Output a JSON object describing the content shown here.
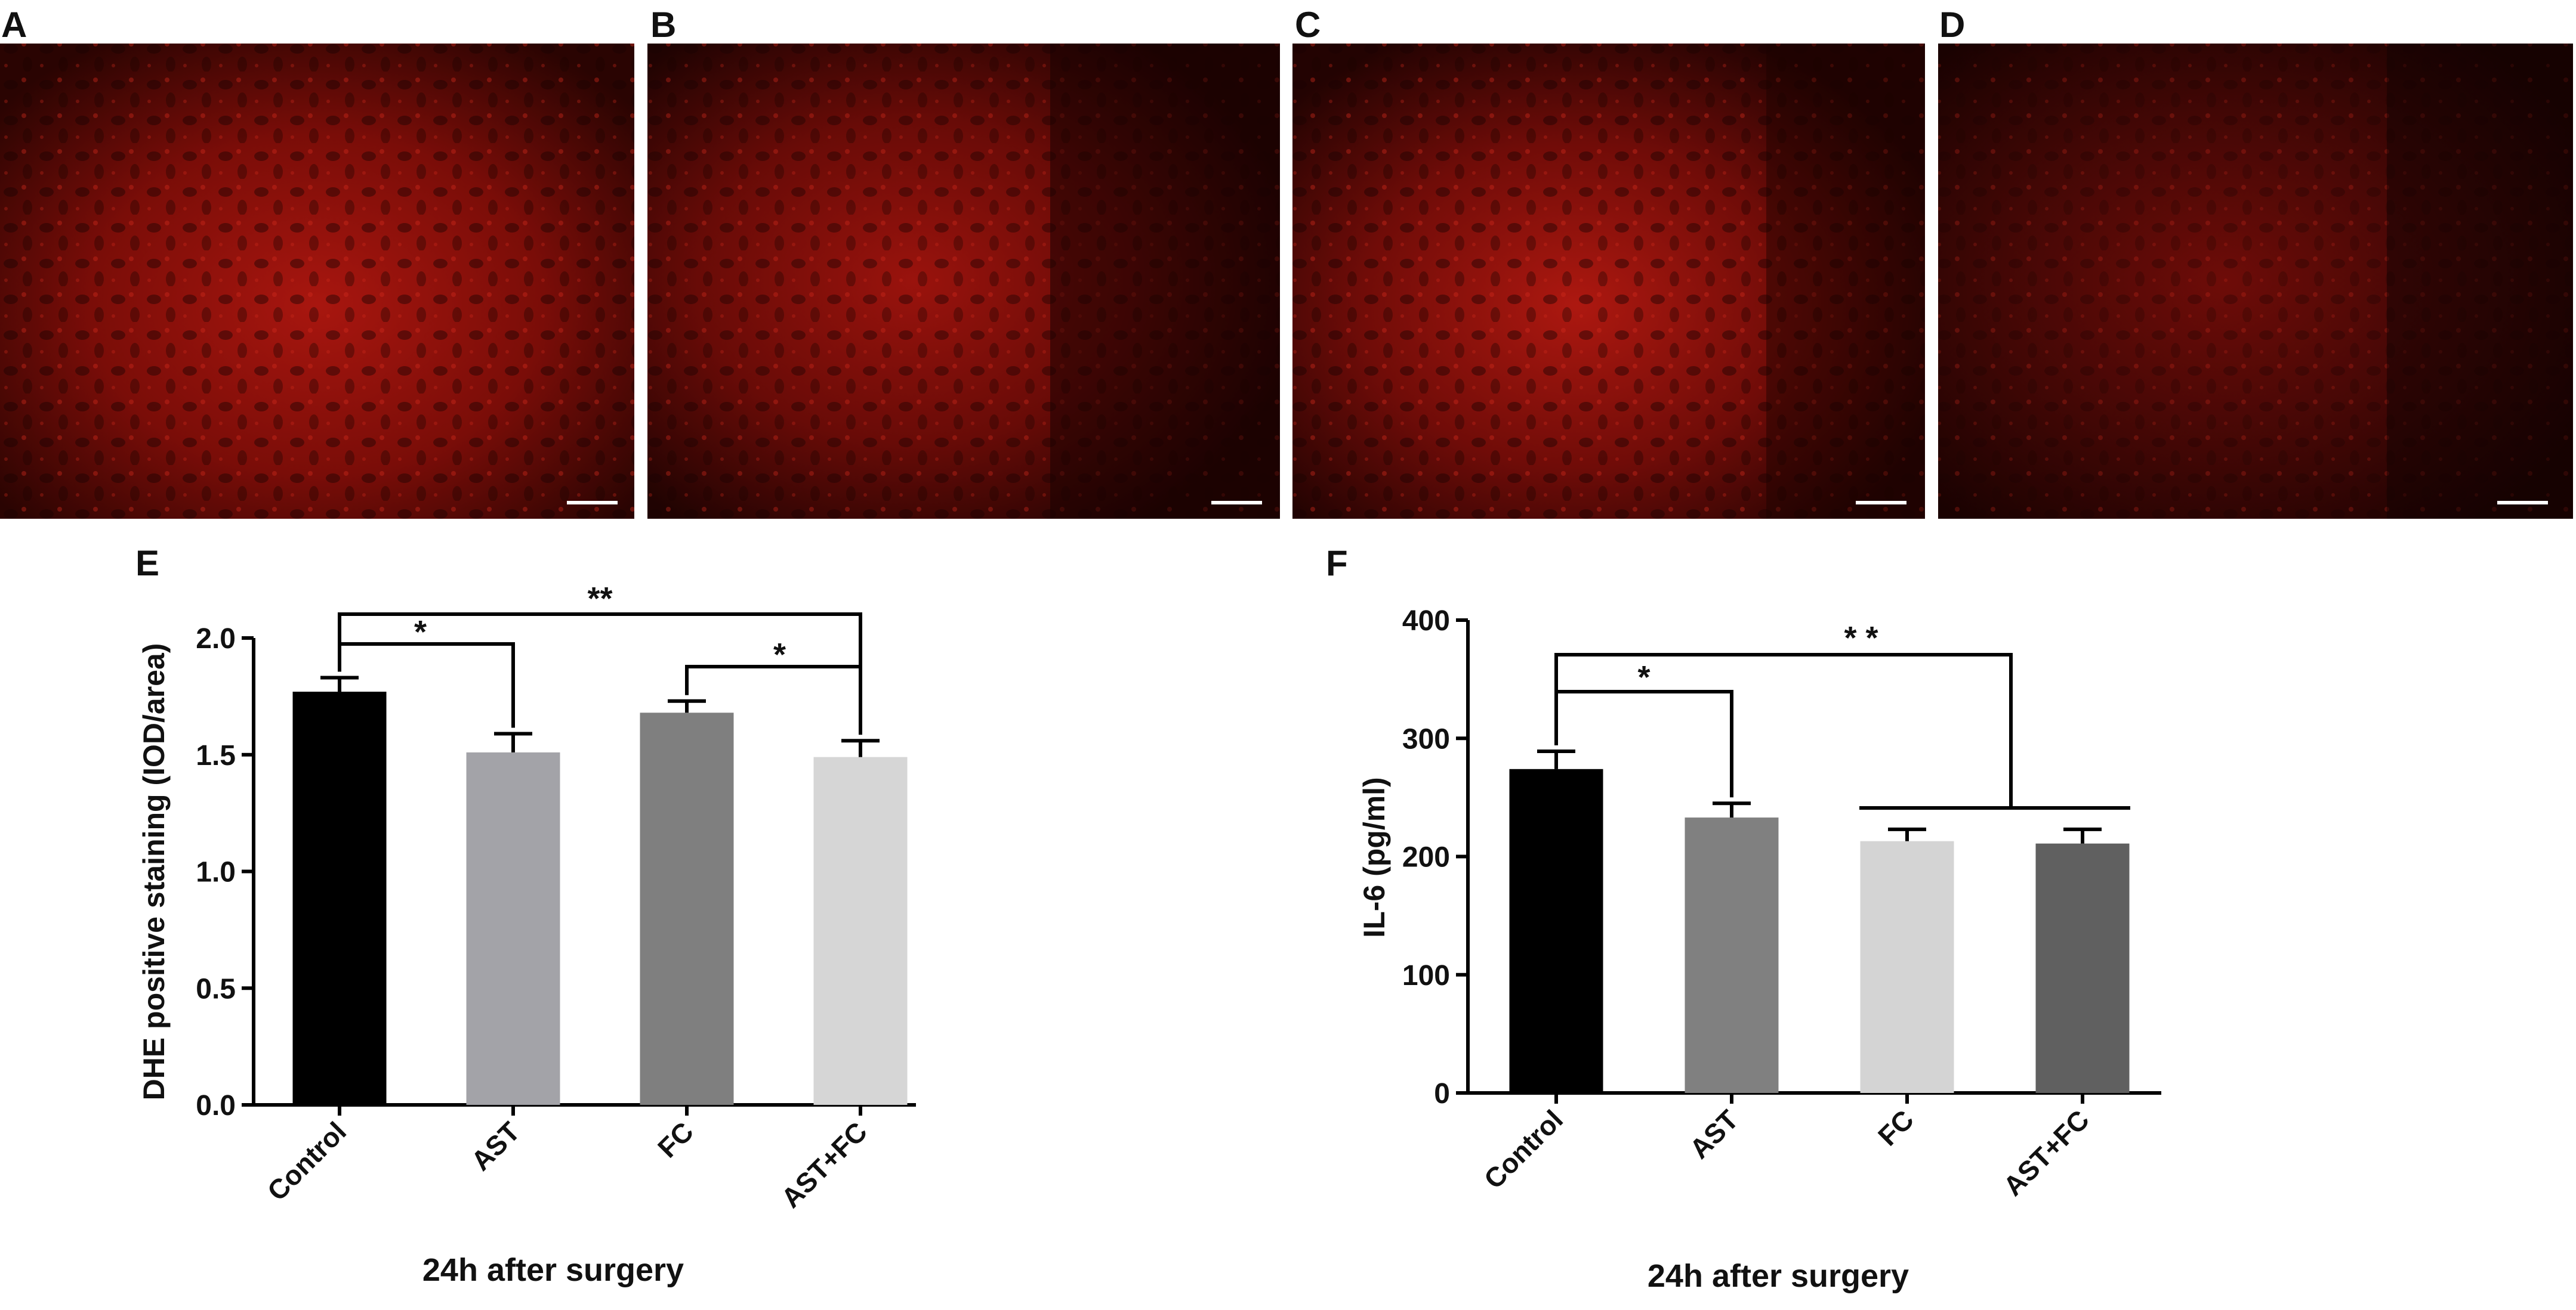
{
  "panels": [
    {
      "letter": "A",
      "color": "#8a0f0a"
    },
    {
      "letter": "B",
      "color": "#7d0d09"
    },
    {
      "letter": "C",
      "color": "#8e120c"
    },
    {
      "letter": "D",
      "color": "#6a0b08"
    }
  ],
  "chart_data": [
    {
      "letter": "E",
      "type": "bar",
      "categories": [
        "Control",
        "AST",
        "FC",
        "AST+FC"
      ],
      "values": [
        1.77,
        1.51,
        1.68,
        1.49
      ],
      "errors": [
        0.06,
        0.08,
        0.05,
        0.07
      ],
      "colors": [
        "#000000",
        "#a3a3a8",
        "#7f7f7f",
        "#d6d6d6"
      ],
      "ylabel": "DHE positive staining (IOD/area)",
      "xlabel": "24h after surgery",
      "ylim": [
        0,
        2.0
      ],
      "yticks": [
        "0.0",
        "0.5",
        "1.0",
        "1.5",
        "2.0"
      ],
      "significance": [
        {
          "from": "Control",
          "to": "AST",
          "label": "*"
        },
        {
          "from": "Control",
          "to": "AST+FC",
          "label": "**"
        },
        {
          "from": "FC",
          "to": "AST+FC",
          "label": "*"
        }
      ]
    },
    {
      "letter": "F",
      "type": "bar",
      "categories": [
        "Control",
        "AST",
        "FC",
        "AST+FC"
      ],
      "values": [
        274,
        233,
        213,
        211
      ],
      "errors": [
        15,
        12,
        10,
        12
      ],
      "colors": [
        "#000000",
        "#808080",
        "#d4d4d4",
        "#606060"
      ],
      "ylabel": "IL-6 (pg/ml)",
      "xlabel": "24h after surgery",
      "ylim": [
        0,
        400
      ],
      "yticks": [
        "0",
        "100",
        "200",
        "300",
        "400"
      ],
      "significance": [
        {
          "from": "Control",
          "to": "AST",
          "label": "*"
        },
        {
          "from": "Control",
          "to": "FC + AST+FC",
          "label": "* *"
        }
      ]
    }
  ]
}
